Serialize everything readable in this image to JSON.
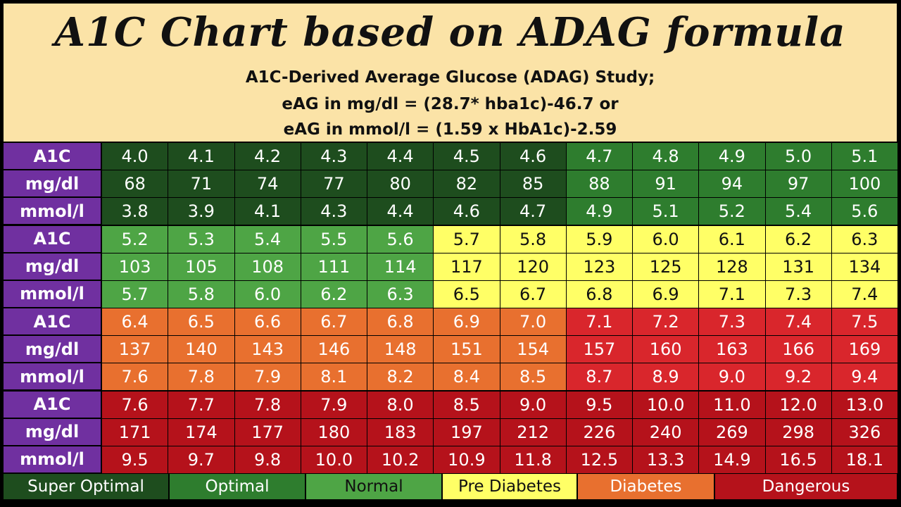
{
  "header": {
    "title": "A1C Chart based on ADAG formula",
    "line1": "A1C-Derived Average Glucose (ADAG) Study;",
    "line2": "eAG in mg/dl = (28.7* hba1c)-46.7 or",
    "line3": "eAG in mmol/l = (1.59 x HbA1c)-2.59"
  },
  "colors": {
    "super_optimal": "#1e4d1e",
    "optimal": "#2e7d2e",
    "normal": "#4ea545",
    "pre_diabetes": "#ffff66",
    "diabetes": "#e8702f",
    "dangerous": "#b5121b",
    "dangerous_light": "#d9262c",
    "label": "#7030a0"
  },
  "chart_data": {
    "type": "table",
    "title": "A1C Chart based on ADAG formula",
    "row_labels": [
      "A1C",
      "mg/dl",
      "mmol/l"
    ],
    "blocks": [
      {
        "a1c": [
          "4.0",
          "4.1",
          "4.2",
          "4.3",
          "4.4",
          "4.5",
          "4.6",
          "4.7",
          "4.8",
          "4.9",
          "5.0",
          "5.1"
        ],
        "mgdl": [
          "68",
          "71",
          "74",
          "77",
          "80",
          "82",
          "85",
          "88",
          "91",
          "94",
          "97",
          "100"
        ],
        "mmol": [
          "3.8",
          "3.9",
          "4.1",
          "4.3",
          "4.4",
          "4.6",
          "4.7",
          "4.9",
          "5.1",
          "5.2",
          "5.4",
          "5.6"
        ],
        "category": [
          "super_optimal",
          "super_optimal",
          "super_optimal",
          "super_optimal",
          "super_optimal",
          "super_optimal",
          "super_optimal",
          "optimal",
          "optimal",
          "optimal",
          "optimal",
          "optimal"
        ]
      },
      {
        "a1c": [
          "5.2",
          "5.3",
          "5.4",
          "5.5",
          "5.6",
          "5.7",
          "5.8",
          "5.9",
          "6.0",
          "6.1",
          "6.2",
          "6.3"
        ],
        "mgdl": [
          "103",
          "105",
          "108",
          "111",
          "114",
          "117",
          "120",
          "123",
          "125",
          "128",
          "131",
          "134"
        ],
        "mmol": [
          "5.7",
          "5.8",
          "6.0",
          "6.2",
          "6.3",
          "6.5",
          "6.7",
          "6.8",
          "6.9",
          "7.1",
          "7.3",
          "7.4"
        ],
        "category": [
          "normal",
          "normal",
          "normal",
          "normal",
          "normal",
          "pre_diabetes",
          "pre_diabetes",
          "pre_diabetes",
          "pre_diabetes",
          "pre_diabetes",
          "pre_diabetes",
          "pre_diabetes"
        ]
      },
      {
        "a1c": [
          "6.4",
          "6.5",
          "6.6",
          "6.7",
          "6.8",
          "6.9",
          "7.0",
          "7.1",
          "7.2",
          "7.3",
          "7.4",
          "7.5"
        ],
        "mgdl": [
          "137",
          "140",
          "143",
          "146",
          "148",
          "151",
          "154",
          "157",
          "160",
          "163",
          "166",
          "169"
        ],
        "mmol": [
          "7.6",
          "7.8",
          "7.9",
          "8.1",
          "8.2",
          "8.4",
          "8.5",
          "8.7",
          "8.9",
          "9.0",
          "9.2",
          "9.4"
        ],
        "category": [
          "diabetes",
          "diabetes",
          "diabetes",
          "diabetes",
          "diabetes",
          "diabetes",
          "diabetes",
          "dangerous_light",
          "dangerous_light",
          "dangerous_light",
          "dangerous_light",
          "dangerous_light"
        ]
      },
      {
        "a1c": [
          "7.6",
          "7.7",
          "7.8",
          "7.9",
          "8.0",
          "8.5",
          "9.0",
          "9.5",
          "10.0",
          "11.0",
          "12.0",
          "13.0"
        ],
        "mgdl": [
          "171",
          "174",
          "177",
          "180",
          "183",
          "197",
          "212",
          "226",
          "240",
          "269",
          "298",
          "326"
        ],
        "mmol": [
          "9.5",
          "9.7",
          "9.8",
          "10.0",
          "10.2",
          "10.9",
          "11.8",
          "12.5",
          "13.3",
          "14.9",
          "16.5",
          "18.1"
        ],
        "category": [
          "dangerous",
          "dangerous",
          "dangerous",
          "dangerous",
          "dangerous",
          "dangerous",
          "dangerous",
          "dangerous",
          "dangerous",
          "dangerous",
          "dangerous",
          "dangerous"
        ]
      }
    ],
    "legend": [
      {
        "label": "Super Optimal",
        "category": "super_optimal"
      },
      {
        "label": "Optimal",
        "category": "optimal"
      },
      {
        "label": "Normal",
        "category": "normal"
      },
      {
        "label": "Pre Diabetes",
        "category": "pre_diabetes"
      },
      {
        "label": "Diabetes",
        "category": "diabetes"
      },
      {
        "label": "Dangerous",
        "category": "dangerous"
      }
    ]
  }
}
